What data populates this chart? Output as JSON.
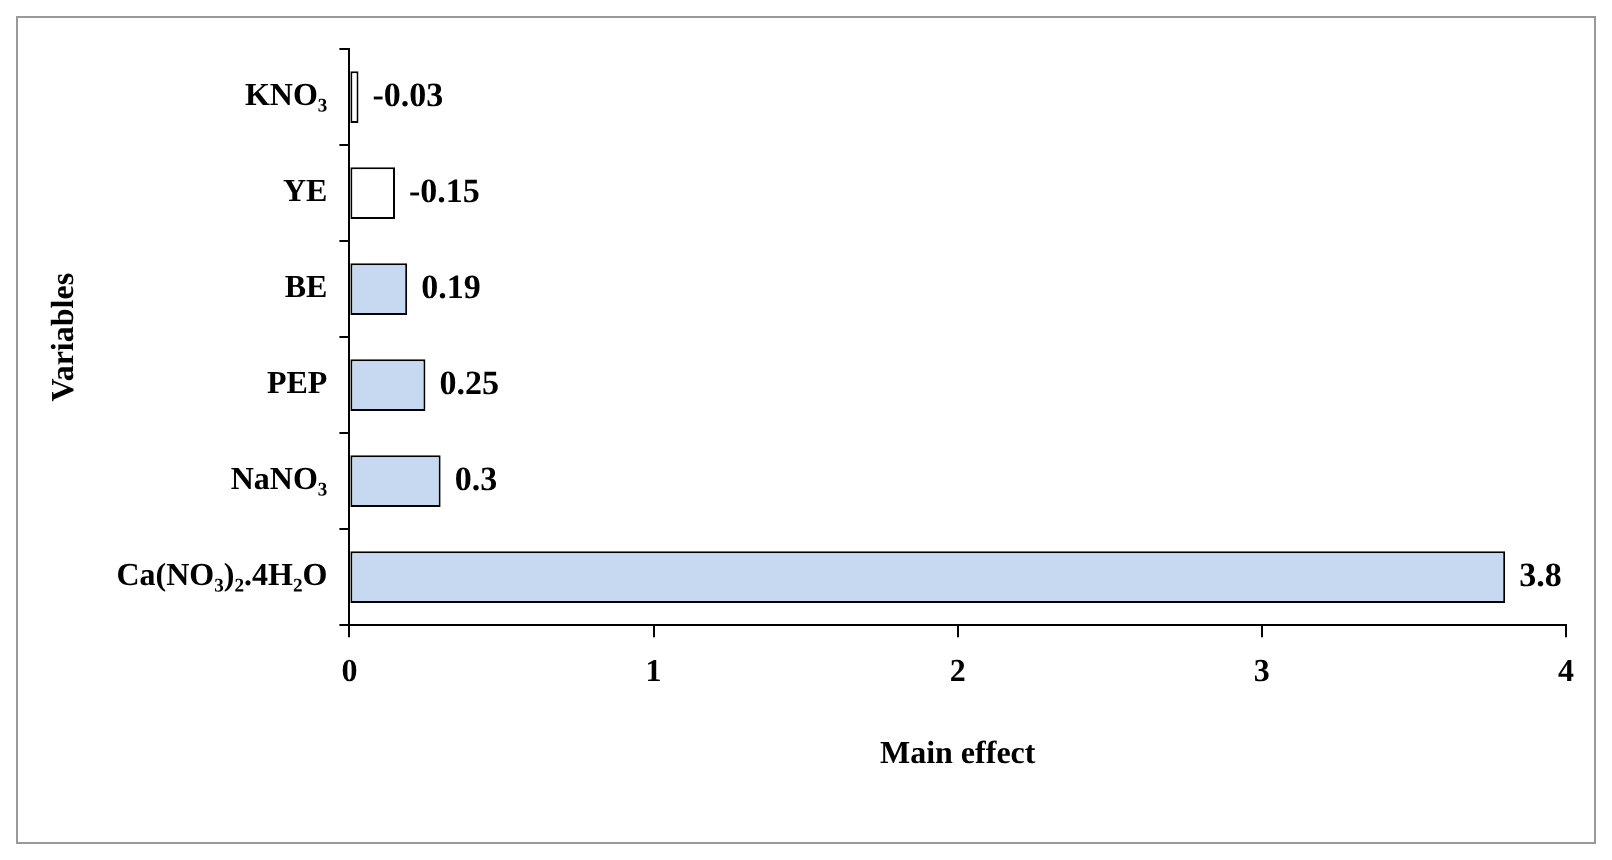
{
  "chart_data": {
    "type": "bar",
    "orientation": "horizontal",
    "xlabel": "Main effect",
    "ylabel": "Variables",
    "categories": [
      "KNO₃",
      "YE",
      "BE",
      "PEP",
      "NaNO₃",
      "Ca(NO₃)₂.4H₂O"
    ],
    "values": [
      -0.03,
      -0.15,
      0.19,
      0.25,
      0.3,
      3.8
    ],
    "base": [
      0.03,
      0.15,
      0,
      0,
      0,
      0
    ],
    "colors": [
      "#ffffff",
      "#ffffff",
      "#c6d9f1",
      "#c6d9f1",
      "#c6d9f1",
      "#c6d9f1"
    ],
    "xlim": [
      0,
      4
    ],
    "xticks": [
      0,
      1,
      2,
      3,
      4
    ],
    "data_labels": true,
    "grid": false,
    "legend": false
  }
}
